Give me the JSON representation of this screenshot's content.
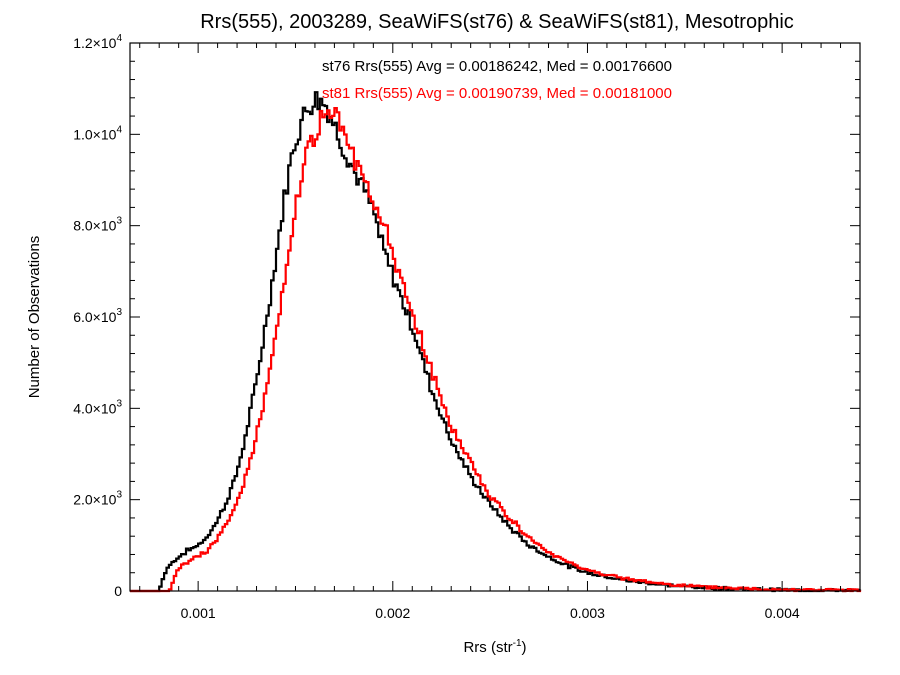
{
  "chart_data": {
    "type": "line",
    "title": "Rrs(555), 2003289, SeaWiFS(st76) & SeaWiFS(st81), Mesotrophic",
    "xlabel": "Rrs (str",
    "xlabel_sup": "-1",
    "xlabel_close": ")",
    "ylabel": "Number of Observations",
    "xlim": [
      0.00065,
      0.0044
    ],
    "ylim": [
      0,
      12000
    ],
    "x_ticks": [
      {
        "value": 0.001,
        "label": "0.001"
      },
      {
        "value": 0.002,
        "label": "0.002"
      },
      {
        "value": 0.003,
        "label": "0.003"
      },
      {
        "value": 0.004,
        "label": "0.004"
      }
    ],
    "y_ticks": [
      {
        "value": 0,
        "mant": "0",
        "exp": ""
      },
      {
        "value": 2000,
        "mant": "2.0×10",
        "exp": "3"
      },
      {
        "value": 4000,
        "mant": "4.0×10",
        "exp": "3"
      },
      {
        "value": 6000,
        "mant": "6.0×10",
        "exp": "3"
      },
      {
        "value": 8000,
        "mant": "8.0×10",
        "exp": "3"
      },
      {
        "value": 10000,
        "mant": "1.0×10",
        "exp": "4"
      },
      {
        "value": 12000,
        "mant": "1.2×10",
        "exp": "4"
      }
    ],
    "grid": false,
    "series": [
      {
        "name": "st76",
        "color": "#000000",
        "annotation": "st76 Rrs(555) Avg = 0.00186242, Med = 0.00176600",
        "points": [
          [
            0.0008,
            0
          ],
          [
            0.00082,
            300
          ],
          [
            0.00085,
            550
          ],
          [
            0.0009,
            750
          ],
          [
            0.00095,
            900
          ],
          [
            0.001,
            1000
          ],
          [
            0.00105,
            1200
          ],
          [
            0.0011,
            1550
          ],
          [
            0.00115,
            2000
          ],
          [
            0.0012,
            2600
          ],
          [
            0.00125,
            3500
          ],
          [
            0.0013,
            4600
          ],
          [
            0.00135,
            5900
          ],
          [
            0.0014,
            7300
          ],
          [
            0.00145,
            8800
          ],
          [
            0.0015,
            9900
          ],
          [
            0.00155,
            10500
          ],
          [
            0.0016,
            10800
          ],
          [
            0.00165,
            10700
          ],
          [
            0.0017,
            10200
          ],
          [
            0.00175,
            9700
          ],
          [
            0.0018,
            9200
          ],
          [
            0.00185,
            8800
          ],
          [
            0.0019,
            8300
          ],
          [
            0.00195,
            7500
          ],
          [
            0.002,
            6900
          ],
          [
            0.0021,
            5800
          ],
          [
            0.0022,
            4400
          ],
          [
            0.0023,
            3300
          ],
          [
            0.0024,
            2500
          ],
          [
            0.0025,
            1900
          ],
          [
            0.0026,
            1400
          ],
          [
            0.0027,
            1000
          ],
          [
            0.0028,
            750
          ],
          [
            0.0029,
            550
          ],
          [
            0.003,
            400
          ],
          [
            0.0032,
            230
          ],
          [
            0.0034,
            130
          ],
          [
            0.0036,
            75
          ],
          [
            0.0038,
            45
          ],
          [
            0.004,
            25
          ],
          [
            0.0042,
            15
          ],
          [
            0.0044,
            10
          ]
        ]
      },
      {
        "name": "st81",
        "color": "#ff0000",
        "annotation": "st81 Rrs(555) Avg = 0.00190739, Med = 0.00181000",
        "points": [
          [
            0.00085,
            0
          ],
          [
            0.00088,
            300
          ],
          [
            0.0009,
            500
          ],
          [
            0.00095,
            650
          ],
          [
            0.001,
            750
          ],
          [
            0.00105,
            900
          ],
          [
            0.0011,
            1150
          ],
          [
            0.00115,
            1500
          ],
          [
            0.0012,
            1950
          ],
          [
            0.00125,
            2600
          ],
          [
            0.0013,
            3400
          ],
          [
            0.00135,
            4400
          ],
          [
            0.0014,
            5700
          ],
          [
            0.00145,
            7000
          ],
          [
            0.0015,
            8400
          ],
          [
            0.00155,
            9400
          ],
          [
            0.0016,
            10000
          ],
          [
            0.00165,
            10400
          ],
          [
            0.0017,
            10400
          ],
          [
            0.00175,
            10000
          ],
          [
            0.0018,
            9500
          ],
          [
            0.00185,
            9100
          ],
          [
            0.0019,
            8600
          ],
          [
            0.00195,
            8100
          ],
          [
            0.002,
            7300
          ],
          [
            0.0021,
            6100
          ],
          [
            0.0022,
            4800
          ],
          [
            0.0023,
            3600
          ],
          [
            0.0024,
            2800
          ],
          [
            0.0025,
            2100
          ],
          [
            0.0026,
            1600
          ],
          [
            0.0027,
            1150
          ],
          [
            0.0028,
            850
          ],
          [
            0.0029,
            620
          ],
          [
            0.003,
            450
          ],
          [
            0.0032,
            260
          ],
          [
            0.0034,
            150
          ],
          [
            0.0036,
            85
          ],
          [
            0.0038,
            50
          ],
          [
            0.004,
            28
          ],
          [
            0.0042,
            17
          ],
          [
            0.0044,
            10
          ]
        ]
      }
    ]
  }
}
